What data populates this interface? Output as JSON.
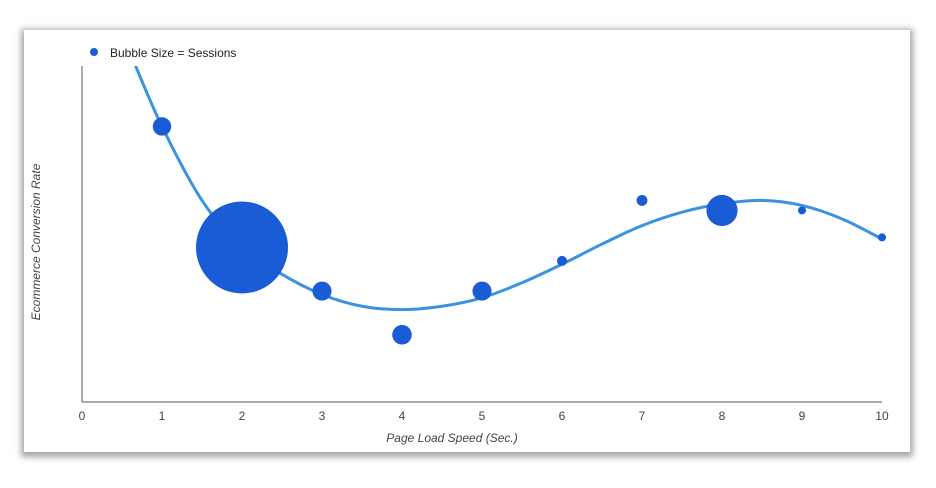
{
  "chart_data": {
    "type": "scatter",
    "subtype": "bubble-with-trendline",
    "legend": {
      "label": "Bubble Size = Sessions",
      "placement": "top-left"
    },
    "xlabel": "Page Load Speed (Sec.)",
    "ylabel": "Ecommerce Conversion Rate",
    "xlim": [
      0,
      10
    ],
    "ylim": [
      0,
      100
    ],
    "xticks": [
      "0",
      "1",
      "2",
      "3",
      "4",
      "5",
      "6",
      "7",
      "8",
      "9",
      "10"
    ],
    "yticks_shown": false,
    "grid": false,
    "colors": {
      "bubble": "#1a5bd6",
      "trendline": "#3b93e0",
      "axis": "#555555"
    },
    "points": [
      {
        "x": 1,
        "y": 82,
        "size": 4
      },
      {
        "x": 2,
        "y": 46,
        "size": 100
      },
      {
        "x": 3,
        "y": 33,
        "size": 4.3
      },
      {
        "x": 4,
        "y": 20,
        "size": 4.5
      },
      {
        "x": 5,
        "y": 33,
        "size": 4.3
      },
      {
        "x": 6,
        "y": 42,
        "size": 1.2
      },
      {
        "x": 7,
        "y": 60,
        "size": 1.4
      },
      {
        "x": 8,
        "y": 57,
        "size": 11.5
      },
      {
        "x": 9,
        "y": 57,
        "size": 0.4
      },
      {
        "x": 10,
        "y": 49,
        "size": 0.35
      }
    ],
    "trendline": [
      {
        "x": 0.6,
        "y": 104
      },
      {
        "x": 1,
        "y": 82
      },
      {
        "x": 1.5,
        "y": 60
      },
      {
        "x": 2,
        "y": 46
      },
      {
        "x": 2.5,
        "y": 38
      },
      {
        "x": 3,
        "y": 32
      },
      {
        "x": 3.5,
        "y": 28.5
      },
      {
        "x": 4,
        "y": 27.5
      },
      {
        "x": 4.5,
        "y": 28.5
      },
      {
        "x": 5,
        "y": 31
      },
      {
        "x": 5.5,
        "y": 35.5
      },
      {
        "x": 6,
        "y": 41
      },
      {
        "x": 6.5,
        "y": 47
      },
      {
        "x": 7,
        "y": 52.5
      },
      {
        "x": 7.5,
        "y": 56.5
      },
      {
        "x": 8,
        "y": 59
      },
      {
        "x": 8.5,
        "y": 60
      },
      {
        "x": 9,
        "y": 58.5
      },
      {
        "x": 9.5,
        "y": 54.5
      },
      {
        "x": 10,
        "y": 48.5
      }
    ]
  }
}
